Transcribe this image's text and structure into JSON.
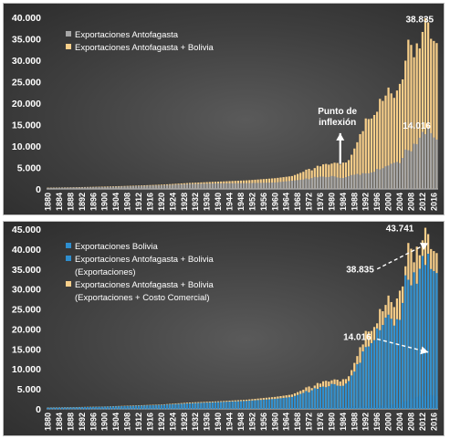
{
  "colors": {
    "gray": "#a6a6a6",
    "tan": "#f8cf8a",
    "blue": "#2e8ecf",
    "arrow": "#ffffff"
  },
  "chart_data": [
    {
      "type": "bar",
      "grid": false,
      "legend_position": "top-left",
      "ylim": [
        0,
        40000
      ],
      "yticks": [
        "0",
        "5.000",
        "10.000",
        "15.000",
        "20.000",
        "25.000",
        "30.000",
        "35.000",
        "40.000"
      ],
      "xticks": [
        "1880",
        "1884",
        "1888",
        "1892",
        "1896",
        "1900",
        "1904",
        "1908",
        "1912",
        "1916",
        "1920",
        "1924",
        "1928",
        "1932",
        "1936",
        "1940",
        "1944",
        "1948",
        "1952",
        "1956",
        "1960",
        "1964",
        "1968",
        "1972",
        "1976",
        "1980",
        "1984",
        "1988",
        "1992",
        "1996",
        "2000",
        "2004",
        "2008",
        "2012",
        "2016"
      ],
      "x_start": 1880,
      "x_end": 2017,
      "anchors_series": [
        {
          "name": "Exportaciones Antofagasta + Bolivia",
          "color": "#f8cf8a",
          "points": [
            [
              1880,
              300
            ],
            [
              1890,
              400
            ],
            [
              1900,
              550
            ],
            [
              1910,
              750
            ],
            [
              1920,
              1000
            ],
            [
              1930,
              1400
            ],
            [
              1940,
              1700
            ],
            [
              1950,
              2000
            ],
            [
              1960,
              2500
            ],
            [
              1966,
              3000
            ],
            [
              1970,
              4000
            ],
            [
              1975,
              5000
            ],
            [
              1980,
              6200
            ],
            [
              1983,
              5800
            ],
            [
              1986,
              7000
            ],
            [
              1988,
              9000
            ],
            [
              1990,
              12000
            ],
            [
              1992,
              16000
            ],
            [
              1995,
              18500
            ],
            [
              1998,
              21000
            ],
            [
              2000,
              22500
            ],
            [
              2002,
              20000
            ],
            [
              2004,
              24000
            ],
            [
              2006,
              31000
            ],
            [
              2008,
              33500
            ],
            [
              2010,
              33000
            ],
            [
              2012,
              36000
            ],
            [
              2014,
              38835
            ],
            [
              2015,
              35000
            ],
            [
              2017,
              34000
            ]
          ]
        },
        {
          "name": "Exportaciones Antofagasta",
          "color": "#a6a6a6",
          "points": [
            [
              1880,
              250
            ],
            [
              1890,
              350
            ],
            [
              1900,
              450
            ],
            [
              1910,
              650
            ],
            [
              1920,
              850
            ],
            [
              1930,
              1150
            ],
            [
              1940,
              1300
            ],
            [
              1950,
              1350
            ],
            [
              1960,
              1500
            ],
            [
              1970,
              2200
            ],
            [
              1975,
              2700
            ],
            [
              1980,
              3000
            ],
            [
              1983,
              2600
            ],
            [
              1986,
              3000
            ],
            [
              1990,
              3400
            ],
            [
              1995,
              4300
            ],
            [
              2000,
              5200
            ],
            [
              2004,
              6500
            ],
            [
              2006,
              8500
            ],
            [
              2008,
              9500
            ],
            [
              2010,
              11000
            ],
            [
              2012,
              12500
            ],
            [
              2014,
              14016
            ],
            [
              2016,
              12000
            ],
            [
              2017,
              11500
            ]
          ]
        }
      ],
      "annotations": [
        {
          "text": "38.835",
          "x": 2011,
          "y": 38835
        },
        {
          "text": "14.016",
          "x": 2010,
          "y": 14016
        },
        {
          "text": "Punto de",
          "x": 1982,
          "y": 17400
        },
        {
          "text": "inflexión",
          "x": 1982,
          "y": 14900
        }
      ],
      "arrows": [
        {
          "from": [
            1983,
            5800
          ],
          "to": [
            1983,
            13000
          ]
        }
      ]
    },
    {
      "type": "bar",
      "grid": false,
      "legend_position": "top-left",
      "ylim": [
        0,
        45000
      ],
      "yticks": [
        "0",
        "5.000",
        "10.000",
        "15.000",
        "20.000",
        "25.000",
        "30.000",
        "35.000",
        "40.000",
        "45.000"
      ],
      "xticks": [
        "1880",
        "1884",
        "1888",
        "1892",
        "1896",
        "1900",
        "1904",
        "1908",
        "1912",
        "1916",
        "1920",
        "1924",
        "1928",
        "1932",
        "1936",
        "1940",
        "1944",
        "1948",
        "1952",
        "1956",
        "1960",
        "1964",
        "1968",
        "1972",
        "1976",
        "1980",
        "1984",
        "1988",
        "1992",
        "1996",
        "2000",
        "2004",
        "2008",
        "2012",
        "2016"
      ],
      "x_start": 1880,
      "x_end": 2017,
      "anchors_series": [
        {
          "name": "Exportaciones Antofagasta + Bolivia (Exportaciones + Costo Comercial)",
          "color": "#f8cf8a",
          "points": [
            [
              1880,
              350
            ],
            [
              1890,
              450
            ],
            [
              1900,
              600
            ],
            [
              1910,
              850
            ],
            [
              1920,
              1100
            ],
            [
              1930,
              1600
            ],
            [
              1940,
              1900
            ],
            [
              1950,
              2300
            ],
            [
              1960,
              3000
            ],
            [
              1966,
              3600
            ],
            [
              1970,
              4800
            ],
            [
              1975,
              6000
            ],
            [
              1980,
              7500
            ],
            [
              1983,
              7000
            ],
            [
              1986,
              8500
            ],
            [
              1988,
              11000
            ],
            [
              1990,
              14500
            ],
            [
              1992,
              19000
            ],
            [
              1995,
              22000
            ],
            [
              1998,
              25000
            ],
            [
              2000,
              27000
            ],
            [
              2002,
              24000
            ],
            [
              2004,
              29000
            ],
            [
              2006,
              37000
            ],
            [
              2008,
              40000
            ],
            [
              2010,
              39500
            ],
            [
              2012,
              41500
            ],
            [
              2014,
              43741
            ],
            [
              2015,
              40000
            ],
            [
              2017,
              39000
            ]
          ]
        },
        {
          "name": "Exportaciones Antofagasta + Bolivia (Exportaciones)",
          "color": "#2e8ecf",
          "points": [
            [
              1880,
              300
            ],
            [
              1890,
              400
            ],
            [
              1900,
              550
            ],
            [
              1910,
              750
            ],
            [
              1920,
              1000
            ],
            [
              1930,
              1400
            ],
            [
              1940,
              1700
            ],
            [
              1950,
              2000
            ],
            [
              1960,
              2500
            ],
            [
              1966,
              3000
            ],
            [
              1970,
              4000
            ],
            [
              1975,
              5000
            ],
            [
              1980,
              6200
            ],
            [
              1983,
              5800
            ],
            [
              1986,
              7000
            ],
            [
              1988,
              9000
            ],
            [
              1990,
              12000
            ],
            [
              1992,
              16000
            ],
            [
              1995,
              18500
            ],
            [
              1998,
              21000
            ],
            [
              2000,
              22500
            ],
            [
              2002,
              20000
            ],
            [
              2004,
              24000
            ],
            [
              2006,
              31000
            ],
            [
              2008,
              33500
            ],
            [
              2010,
              33000
            ],
            [
              2012,
              36000
            ],
            [
              2014,
              38835
            ],
            [
              2015,
              35000
            ],
            [
              2017,
              34000
            ]
          ]
        },
        {
          "name": "Exportaciones Bolivia",
          "color": "#2e8ecf",
          "points": [
            [
              1880,
              20
            ],
            [
              1920,
              60
            ],
            [
              1950,
              120
            ],
            [
              1970,
              250
            ],
            [
              1980,
              400
            ],
            [
              1990,
              700
            ],
            [
              2000,
              900
            ],
            [
              2004,
              1400
            ],
            [
              2008,
              2500
            ],
            [
              2012,
              3300
            ],
            [
              2014,
              3600
            ],
            [
              2017,
              3200
            ]
          ]
        }
      ],
      "annotations": [
        {
          "text": "43.741",
          "x": 2004,
          "y": 44400
        },
        {
          "text": "38.835",
          "x": 1990,
          "y": 34200
        },
        {
          "text": "14.016",
          "x": 1989,
          "y": 17300
        }
      ],
      "arrows": [
        {
          "from": [
            1996,
            35000
          ],
          "to": [
            2014,
            41500
          ]
        },
        {
          "from": [
            1996,
            17500
          ],
          "to": [
            2014,
            14200
          ]
        }
      ]
    }
  ],
  "legend1": [
    {
      "label": "Exportaciones Antofagasta",
      "color": "#a6a6a6"
    },
    {
      "label": "Exportaciones Antofagasta + Bolivia",
      "color": "#f8cf8a"
    }
  ],
  "legend2": [
    {
      "label": "Exportaciones Bolivia",
      "color": "#2e8ecf"
    },
    {
      "label": "Exportaciones Antofagasta + Bolivia",
      "color": "#2e8ecf"
    },
    {
      "label": "(Exportaciones)",
      "color": ""
    },
    {
      "label": "Exportaciones Antofagasta + Bolivia",
      "color": "#f8cf8a"
    },
    {
      "label": "(Exportaciones + Costo Comercial)",
      "color": ""
    }
  ]
}
